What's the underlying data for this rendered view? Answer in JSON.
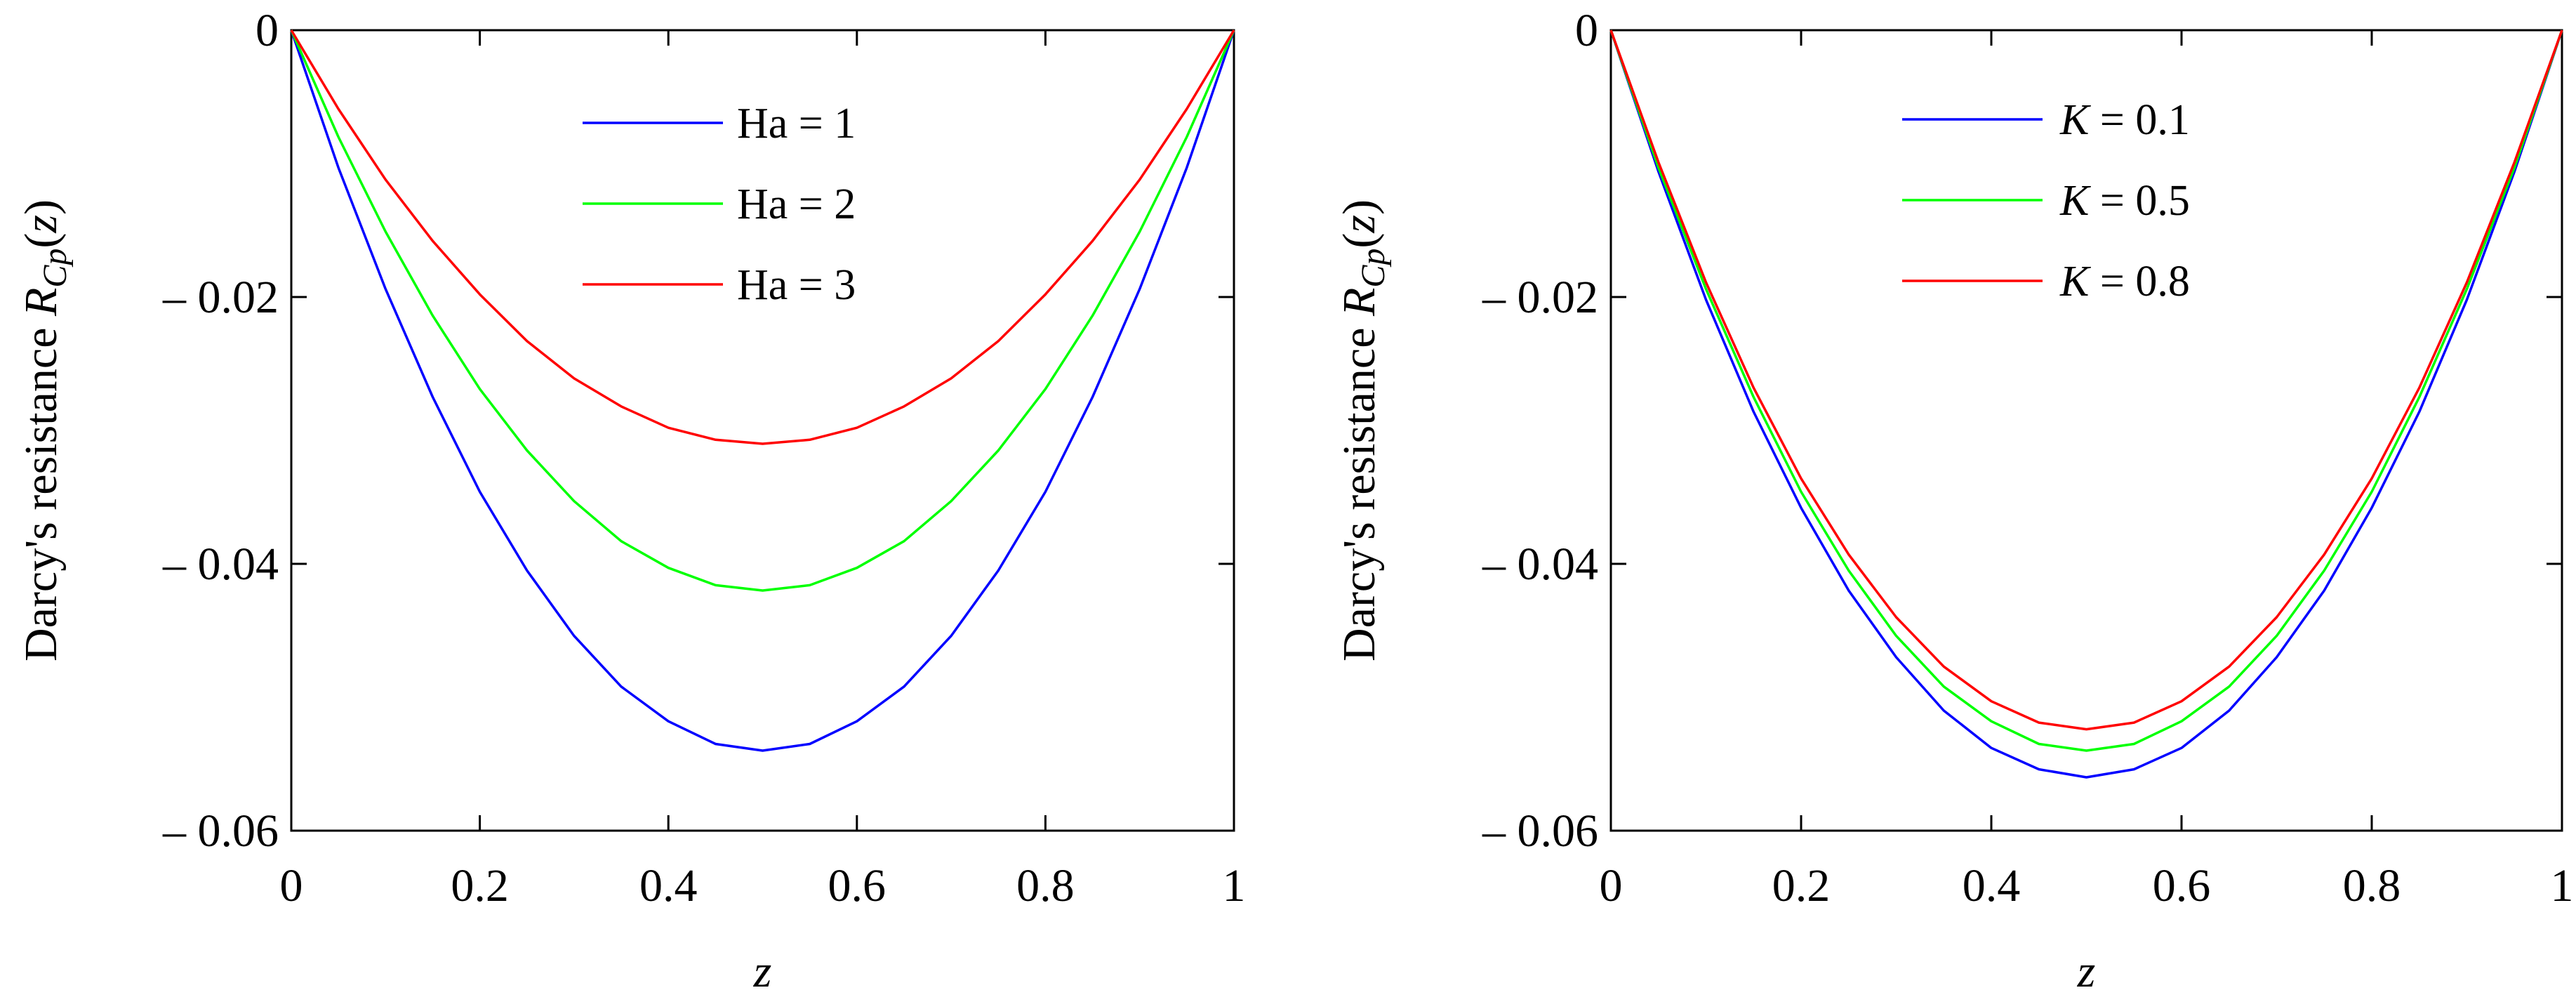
{
  "chart_data": [
    {
      "type": "line",
      "title": "",
      "xlabel": "z",
      "ylabel": {
        "prefix": "Darcy's resistance ",
        "symbol": "R",
        "subscript": "Cp",
        "suffix": "(z)"
      },
      "xlim": [
        0,
        1
      ],
      "ylim": [
        -0.06,
        0
      ],
      "xticks": [
        0,
        0.2,
        0.4,
        0.6,
        0.8,
        1
      ],
      "xtick_labels": [
        "0",
        "0.2",
        "0.4",
        "0.6",
        "0.8",
        "1"
      ],
      "yticks": [
        0,
        -0.02,
        -0.04,
        -0.06
      ],
      "ytick_labels": [
        "0",
        "– 0.02",
        "– 0.04",
        "– 0.06"
      ],
      "grid": false,
      "legend_position": "top-center",
      "x": [
        0,
        0.05,
        0.1,
        0.15,
        0.2,
        0.25,
        0.3,
        0.35,
        0.4,
        0.45,
        0.5,
        0.55,
        0.6,
        0.65,
        0.7,
        0.75,
        0.8,
        0.85,
        0.9,
        0.95,
        1
      ],
      "series": [
        {
          "name": "Ha = 1",
          "param": "Ha",
          "param_italic": false,
          "value_text": "1",
          "color": "#0000ff",
          "values": [
            0,
            -0.0103,
            -0.0194,
            -0.0275,
            -0.0346,
            -0.0405,
            -0.0454,
            -0.0492,
            -0.0518,
            -0.0535,
            -0.054,
            -0.0535,
            -0.0518,
            -0.0492,
            -0.0454,
            -0.0405,
            -0.0346,
            -0.0275,
            -0.0194,
            -0.0103,
            0
          ]
        },
        {
          "name": "Ha = 2",
          "param": "Ha",
          "param_italic": false,
          "value_text": "2",
          "color": "#00ff00",
          "values": [
            0,
            -0.008,
            -0.0151,
            -0.0214,
            -0.0269,
            -0.0315,
            -0.0353,
            -0.0383,
            -0.0403,
            -0.0416,
            -0.042,
            -0.0416,
            -0.0403,
            -0.0383,
            -0.0353,
            -0.0315,
            -0.0269,
            -0.0214,
            -0.0151,
            -0.008,
            0
          ]
        },
        {
          "name": "Ha = 3",
          "param": "Ha",
          "param_italic": false,
          "value_text": "3",
          "color": "#ff0000",
          "values": [
            0,
            -0.0059,
            -0.0112,
            -0.0158,
            -0.0198,
            -0.0233,
            -0.0261,
            -0.0282,
            -0.0298,
            -0.0307,
            -0.031,
            -0.0307,
            -0.0298,
            -0.0282,
            -0.0261,
            -0.0233,
            -0.0198,
            -0.0158,
            -0.0112,
            -0.0059,
            0
          ]
        }
      ]
    },
    {
      "type": "line",
      "title": "",
      "xlabel": "z",
      "ylabel": {
        "prefix": "Darcy's resistance ",
        "symbol": "R",
        "subscript": "Cp",
        "suffix": "(z)"
      },
      "xlim": [
        0,
        1
      ],
      "ylim": [
        -0.06,
        0
      ],
      "xticks": [
        0,
        0.2,
        0.4,
        0.6,
        0.8,
        1
      ],
      "xtick_labels": [
        "0",
        "0.2",
        "0.4",
        "0.6",
        "0.8",
        "1"
      ],
      "yticks": [
        0,
        -0.02,
        -0.04,
        -0.06
      ],
      "ytick_labels": [
        "0",
        "– 0.02",
        "– 0.04",
        "– 0.06"
      ],
      "grid": false,
      "legend_position": "top-center",
      "x": [
        0,
        0.05,
        0.1,
        0.15,
        0.2,
        0.25,
        0.3,
        0.35,
        0.4,
        0.45,
        0.5,
        0.55,
        0.6,
        0.65,
        0.7,
        0.75,
        0.8,
        0.85,
        0.9,
        0.95,
        1
      ],
      "series": [
        {
          "name": "K = 0.1",
          "param": "K",
          "param_italic": true,
          "value_text": "0.1",
          "color": "#0000ff",
          "values": [
            0,
            -0.0106,
            -0.0202,
            -0.0286,
            -0.0358,
            -0.042,
            -0.047,
            -0.051,
            -0.0538,
            -0.0554,
            -0.056,
            -0.0554,
            -0.0538,
            -0.051,
            -0.047,
            -0.042,
            -0.0358,
            -0.0286,
            -0.0202,
            -0.0106,
            0
          ]
        },
        {
          "name": "K = 0.5",
          "param": "K",
          "param_italic": true,
          "value_text": "0.5",
          "color": "#00ff00",
          "values": [
            0,
            -0.0103,
            -0.0194,
            -0.0275,
            -0.0346,
            -0.0405,
            -0.0454,
            -0.0492,
            -0.0518,
            -0.0535,
            -0.054,
            -0.0535,
            -0.0518,
            -0.0492,
            -0.0454,
            -0.0405,
            -0.0346,
            -0.0275,
            -0.0194,
            -0.0103,
            0
          ]
        },
        {
          "name": "K = 0.8",
          "param": "K",
          "param_italic": true,
          "value_text": "0.8",
          "color": "#ff0000",
          "values": [
            0,
            -0.0099,
            -0.0189,
            -0.0268,
            -0.0336,
            -0.0393,
            -0.044,
            -0.0477,
            -0.0503,
            -0.0519,
            -0.0524,
            -0.0519,
            -0.0503,
            -0.0477,
            -0.044,
            -0.0393,
            -0.0336,
            -0.0268,
            -0.0189,
            -0.0099,
            0
          ]
        }
      ]
    }
  ]
}
